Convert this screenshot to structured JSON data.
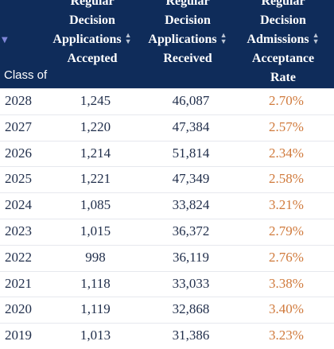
{
  "table": {
    "header": {
      "class_label": "Class of",
      "sort_indicator": "▼",
      "columns": [
        {
          "lines": [
            "Regular",
            "Decision",
            "Applications",
            "Accepted"
          ],
          "sortable": true
        },
        {
          "lines": [
            "Regular",
            "Decision",
            "Applications",
            "Received"
          ],
          "sortable": true
        },
        {
          "lines": [
            "Regular",
            "Decision",
            "Admissions",
            "Acceptance",
            "Rate"
          ],
          "sortable": true
        }
      ]
    },
    "rows": [
      {
        "year": "2028",
        "accepted": "1,245",
        "received": "46,087",
        "rate": "2.70%"
      },
      {
        "year": "2027",
        "accepted": "1,220",
        "received": "47,384",
        "rate": "2.57%"
      },
      {
        "year": "2026",
        "accepted": "1,214",
        "received": "51,814",
        "rate": "2.34%"
      },
      {
        "year": "2025",
        "accepted": "1,221",
        "received": "47,349",
        "rate": "2.58%"
      },
      {
        "year": "2024",
        "accepted": "1,085",
        "received": "33,824",
        "rate": "3.21%"
      },
      {
        "year": "2023",
        "accepted": "1,015",
        "received": "36,372",
        "rate": "2.79%"
      },
      {
        "year": "2022",
        "accepted": "998",
        "received": "36,119",
        "rate": "2.76%"
      },
      {
        "year": "2021",
        "accepted": "1,118",
        "received": "33,033",
        "rate": "3.38%"
      },
      {
        "year": "2020",
        "accepted": "1,119",
        "received": "32,868",
        "rate": "3.40%"
      },
      {
        "year": "2019",
        "accepted": "1,013",
        "received": "31,386",
        "rate": "3.23%"
      }
    ]
  },
  "colors": {
    "header_bg": "#0f2c5a",
    "header_text": "#ffffff",
    "rate_text": "#d07a3c",
    "body_text": "#1f2d4a",
    "row_divider": "#e6e8ee",
    "sort_arrow": "#7f86d8"
  },
  "icons": {
    "sort_desc": "triangle-down-icon",
    "sortable": "sort-up-down-icon"
  }
}
